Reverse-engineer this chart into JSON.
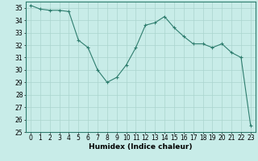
{
  "x": [
    0,
    1,
    2,
    3,
    4,
    5,
    6,
    7,
    8,
    9,
    10,
    11,
    12,
    13,
    14,
    15,
    16,
    17,
    18,
    19,
    20,
    21,
    22,
    23
  ],
  "y": [
    35.2,
    34.9,
    34.8,
    34.8,
    34.7,
    32.4,
    31.8,
    30.0,
    29.0,
    29.4,
    30.4,
    31.8,
    33.6,
    33.8,
    34.3,
    33.4,
    32.7,
    32.1,
    32.1,
    31.8,
    32.1,
    31.4,
    31.0,
    25.5
  ],
  "title": "",
  "xlabel": "Humidex (Indice chaleur)",
  "ylabel": "",
  "ylim": [
    25,
    35.5
  ],
  "xlim": [
    -0.5,
    23.5
  ],
  "line_color": "#2e7d6e",
  "marker": "+",
  "bg_color": "#c8ece8",
  "grid_color": "#aad4ce",
  "tick_label_fontsize": 5.5,
  "xlabel_fontsize": 6.5,
  "yticks": [
    25,
    26,
    27,
    28,
    29,
    30,
    31,
    32,
    33,
    34,
    35
  ],
  "xticks": [
    0,
    1,
    2,
    3,
    4,
    5,
    6,
    7,
    8,
    9,
    10,
    11,
    12,
    13,
    14,
    15,
    16,
    17,
    18,
    19,
    20,
    21,
    22,
    23
  ]
}
